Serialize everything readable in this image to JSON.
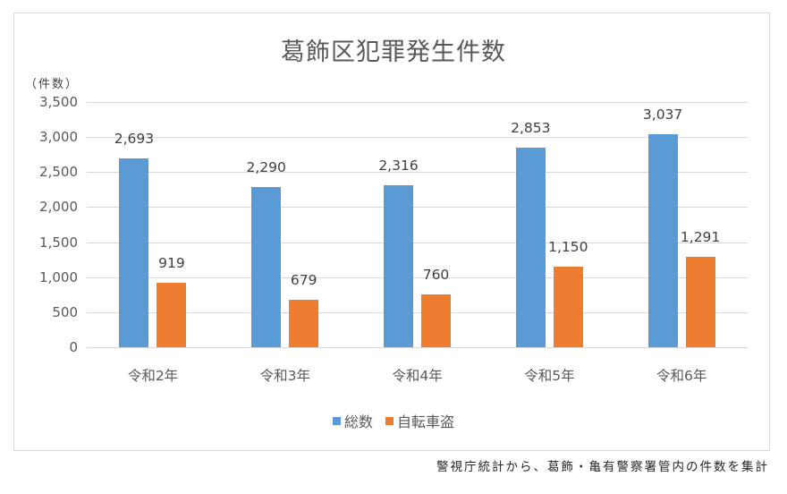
{
  "chart_data": {
    "type": "bar",
    "title": "葛飾区犯罪発生件数",
    "xlabel": "",
    "ylabel": "（件数）",
    "categories": [
      "令和2年",
      "令和3年",
      "令和4年",
      "令和5年",
      "令和6年"
    ],
    "series": [
      {
        "name": "総数",
        "color": "#5B9BD5",
        "values": [
          2693,
          2290,
          2316,
          2853,
          3037
        ],
        "labels": [
          "2,693",
          "2,290",
          "2,316",
          "2,853",
          "3,037"
        ]
      },
      {
        "name": "自転車盗",
        "color": "#ED7D31",
        "values": [
          919,
          679,
          760,
          1150,
          1291
        ],
        "labels": [
          "919",
          "679",
          "760",
          "1,150",
          "1,291"
        ]
      }
    ],
    "ylim": [
      0,
      3500
    ],
    "yticks": [
      "0",
      "500",
      "1,000",
      "1,500",
      "2,000",
      "2,500",
      "3,000",
      "3,500"
    ],
    "grid": true,
    "legend_position": "bottom",
    "data_labels": true
  },
  "title": "葛飾区犯罪発生件数",
  "y_unit": "（件数）",
  "legend": [
    {
      "label": "総数",
      "color": "#5B9BD5"
    },
    {
      "label": "自転車盗",
      "color": "#ED7D31"
    }
  ],
  "source_note": "警視庁統計から、葛飾・亀有警察署管内の件数を集計"
}
